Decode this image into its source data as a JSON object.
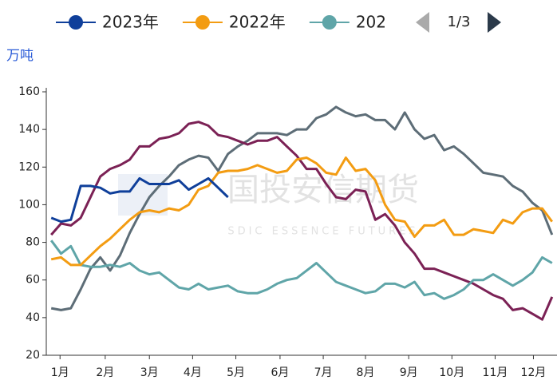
{
  "chart_data": {
    "type": "line",
    "y_label": "万吨",
    "legend_page": "1/3",
    "watermark": [
      "国投安信期货",
      "SDIC ESSENCE FUTURES"
    ],
    "x": [
      1,
      2,
      3,
      4,
      5,
      6,
      7,
      8,
      9,
      10,
      11,
      12,
      13,
      14,
      15,
      16,
      17,
      18,
      19,
      20,
      21,
      22,
      23,
      24,
      25,
      26,
      27,
      28,
      29,
      30,
      31,
      32,
      33,
      34,
      35,
      36,
      37,
      38,
      39,
      40,
      41,
      42,
      43,
      44,
      45,
      46,
      47,
      48,
      49,
      50,
      51,
      52
    ],
    "xlim": [
      0.5,
      52.5
    ],
    "xticks": [
      {
        "value": 1.9,
        "label": "1月"
      },
      {
        "value": 6.5,
        "label": "2月"
      },
      {
        "value": 11,
        "label": "3月"
      },
      {
        "value": 15.4,
        "label": "4月"
      },
      {
        "value": 19.8,
        "label": "5月"
      },
      {
        "value": 24.3,
        "label": "6月"
      },
      {
        "value": 28.7,
        "label": "7月"
      },
      {
        "value": 33,
        "label": "8月"
      },
      {
        "value": 37.4,
        "label": "9月"
      },
      {
        "value": 41.8,
        "label": "10月"
      },
      {
        "value": 46.2,
        "label": "11月"
      },
      {
        "value": 50.1,
        "label": "12月"
      }
    ],
    "ylim": [
      20,
      160
    ],
    "yticks": [
      20,
      40,
      60,
      80,
      100,
      120,
      140,
      160
    ],
    "series": [
      {
        "name": "2023年",
        "color": "#0f3f9a",
        "values": [
          93,
          91,
          92,
          110,
          110,
          109,
          106,
          107,
          107,
          114,
          111,
          111,
          111,
          113,
          108,
          111,
          114,
          109,
          104,
          null,
          null,
          null,
          null,
          null,
          null,
          null,
          null,
          null,
          null,
          null,
          null,
          null,
          null,
          null,
          null,
          null,
          null,
          null,
          null,
          null,
          null,
          null,
          null,
          null,
          null,
          null,
          null,
          null,
          null,
          null,
          null,
          null
        ]
      },
      {
        "name": "2022年",
        "color": "#f39c12",
        "values": [
          71,
          72,
          68,
          68,
          73,
          78,
          82,
          87,
          92,
          96,
          97,
          96,
          98,
          97,
          100,
          108,
          110,
          117,
          118,
          118,
          119,
          121,
          119,
          117,
          118,
          124,
          125,
          122,
          117,
          116,
          125,
          118,
          119,
          113,
          100,
          92,
          91,
          83,
          89,
          89,
          92,
          84,
          84,
          87,
          86,
          85,
          92,
          90,
          96,
          98,
          98,
          91
        ]
      },
      {
        "name": "202",
        "color": "#5fa5a8",
        "values": [
          81,
          74,
          78,
          68,
          67,
          67,
          68,
          67,
          69,
          65,
          63,
          64,
          60,
          56,
          55,
          58,
          55,
          56,
          57,
          54,
          53,
          53,
          55,
          58,
          60,
          61,
          65,
          69,
          64,
          59,
          57,
          55,
          53,
          54,
          58,
          58,
          56,
          59,
          52,
          53,
          50,
          52,
          55,
          60,
          60,
          63,
          60,
          57,
          60,
          64,
          72,
          69
        ]
      },
      {
        "color": "#7b2155",
        "values": [
          84,
          90,
          89,
          93,
          104,
          115,
          119,
          121,
          124,
          131,
          131,
          135,
          136,
          138,
          143,
          144,
          142,
          137,
          136,
          134,
          132,
          134,
          134,
          136,
          131,
          126,
          119,
          119,
          111,
          104,
          103,
          108,
          107,
          92,
          95,
          89,
          80,
          74,
          66,
          66,
          64,
          62,
          60,
          58,
          55,
          52,
          50,
          44,
          45,
          42,
          39,
          51
        ]
      },
      {
        "color": "#5d6d77",
        "values": [
          45,
          44,
          45,
          55,
          66,
          72,
          65,
          73,
          85,
          95,
          104,
          110,
          115,
          121,
          124,
          126,
          125,
          118,
          127,
          131,
          134,
          138,
          138,
          138,
          137,
          140,
          140,
          146,
          148,
          152,
          149,
          147,
          148,
          145,
          145,
          140,
          149,
          140,
          135,
          137,
          129,
          131,
          127,
          122,
          117,
          116,
          115,
          110,
          107,
          101,
          97,
          84
        ]
      }
    ]
  }
}
